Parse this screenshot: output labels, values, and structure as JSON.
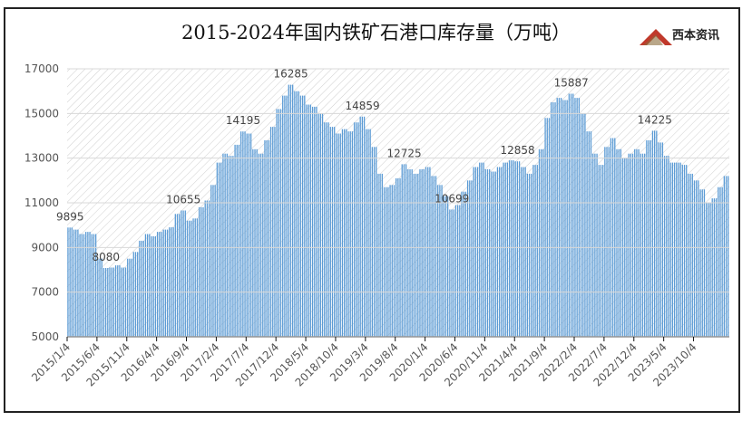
{
  "chart_data": {
    "type": "bar",
    "title": "2015-2024年国内铁矿石港口库存量（万吨）",
    "xlabel": "",
    "ylabel": "",
    "ylim": [
      5000,
      17000
    ],
    "yticks": [
      5000,
      7000,
      9000,
      11000,
      13000,
      15000,
      17000
    ],
    "grid": false,
    "legend": "none",
    "start_month": "2015-01",
    "frequency": "monthly (approx. from weekly bars)",
    "xtick_labels": [
      "2015/1/4",
      "2015/6/4",
      "2015/11/4",
      "2016/4/4",
      "2016/9/4",
      "2017/2/4",
      "2017/7/4",
      "2017/12/4",
      "2018/5/4",
      "2018/10/4",
      "2019/3/4",
      "2019/8/4",
      "2020/1/4",
      "2020/6/4",
      "2020/11/4",
      "2021/4/4",
      "2021/9/4",
      "2022/2/4",
      "2022/7/4",
      "2022/12/4",
      "2023/5/4",
      "2023/10/4"
    ],
    "values": [
      9895,
      9800,
      9600,
      9700,
      9600,
      8500,
      8080,
      8100,
      8200,
      8100,
      8500,
      8800,
      9300,
      9600,
      9500,
      9700,
      9800,
      9900,
      10500,
      10655,
      10200,
      10300,
      10800,
      11100,
      11800,
      12800,
      13200,
      13100,
      13600,
      14195,
      14100,
      13400,
      13200,
      13800,
      14400,
      15200,
      15800,
      16285,
      16000,
      15800,
      15400,
      15300,
      15000,
      14600,
      14400,
      14100,
      14300,
      14200,
      14600,
      14859,
      14300,
      13500,
      12300,
      11700,
      11800,
      12100,
      12725,
      12500,
      12300,
      12500,
      12600,
      12200,
      11800,
      11300,
      10699,
      10900,
      11500,
      12000,
      12600,
      12800,
      12500,
      12400,
      12600,
      12800,
      12900,
      12858,
      12600,
      12300,
      12700,
      13400,
      14800,
      15500,
      15700,
      15600,
      15887,
      15700,
      15000,
      14200,
      13200,
      12700,
      13500,
      13900,
      13400,
      13000,
      13200,
      13400,
      13200,
      13800,
      14225,
      13700,
      13100,
      12800,
      12800,
      12700,
      12300,
      12000,
      11600,
      11000,
      11200,
      11700,
      12200
    ],
    "data_labels": [
      {
        "index": 0,
        "text": "9895"
      },
      {
        "index": 6,
        "text": "8080"
      },
      {
        "index": 19,
        "text": "10655"
      },
      {
        "index": 29,
        "text": "14195"
      },
      {
        "index": 37,
        "text": "16285"
      },
      {
        "index": 49,
        "text": "14859"
      },
      {
        "index": 56,
        "text": "12725"
      },
      {
        "index": 64,
        "text": "10699"
      },
      {
        "index": 75,
        "text": "12858"
      },
      {
        "index": 84,
        "text": "15887"
      },
      {
        "index": 98,
        "text": "14225"
      }
    ],
    "bar_color": "#5b9bd5"
  },
  "logo": {
    "text": "西本资讯"
  }
}
